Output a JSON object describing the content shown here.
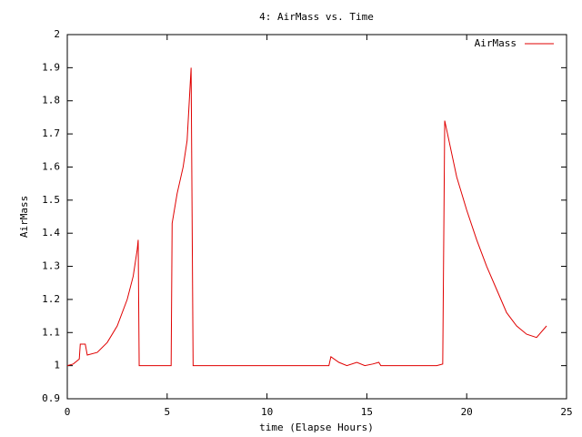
{
  "chart_data": {
    "type": "line",
    "title": "4: AirMass vs. Time",
    "xlabel": "time (Elapse Hours)",
    "ylabel": "AirMass",
    "x": [
      0,
      0.3,
      0.6,
      0.65,
      0.9,
      1.0,
      1.5,
      2.0,
      2.5,
      3.0,
      3.3,
      3.5,
      3.55,
      3.6,
      5.2,
      5.25,
      5.5,
      5.8,
      6.0,
      6.2,
      6.3,
      13.1,
      13.2,
      13.6,
      14.0,
      14.5,
      14.9,
      15.3,
      15.6,
      15.7,
      18.5,
      18.8,
      18.9,
      19.5,
      20.0,
      20.5,
      21.0,
      21.5,
      22.0,
      22.5,
      23.0,
      23.5,
      24.0
    ],
    "series": [
      {
        "name": "AirMass",
        "color": "#e00000",
        "values": [
          1.0,
          1.005,
          1.02,
          1.065,
          1.065,
          1.032,
          1.04,
          1.07,
          1.12,
          1.2,
          1.27,
          1.35,
          1.38,
          1.0,
          1.0,
          1.43,
          1.52,
          1.6,
          1.68,
          1.9,
          1.0,
          1.0,
          1.027,
          1.01,
          1.0,
          1.01,
          1.0,
          1.005,
          1.01,
          1.0,
          1.0,
          1.005,
          1.74,
          1.57,
          1.47,
          1.38,
          1.3,
          1.23,
          1.16,
          1.12,
          1.095,
          1.085,
          1.12
        ]
      }
    ],
    "xlim": [
      0,
      25
    ],
    "xticks": [
      0,
      5,
      10,
      15,
      20,
      25
    ],
    "ylim": [
      0.9,
      2
    ],
    "yticks": [
      0.9,
      1,
      1.1,
      1.2,
      1.3,
      1.4,
      1.5,
      1.6,
      1.7,
      1.8,
      1.9,
      2
    ],
    "legend": "upper right"
  }
}
